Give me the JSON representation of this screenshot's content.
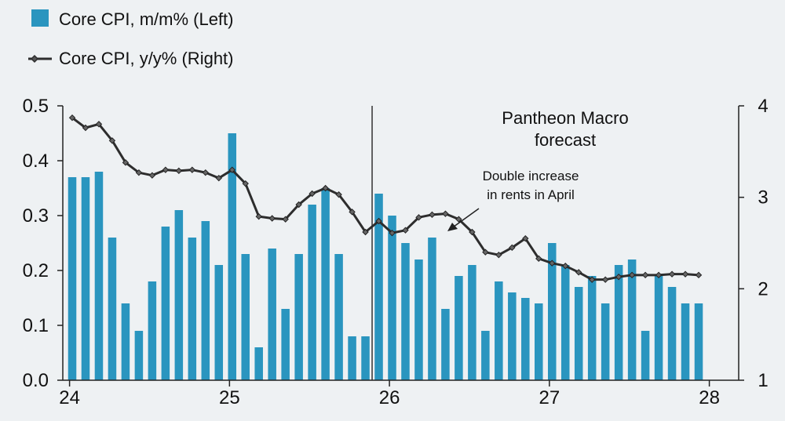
{
  "chart_data": {
    "type": "bar+line",
    "legend": [
      {
        "label": "Core CPI, m/m% (Left)",
        "marker": "bar",
        "color": "#2a95bf"
      },
      {
        "label": "Core CPI, y/y% (Right)",
        "marker": "line-diamond",
        "color": "#2d2d2d"
      }
    ],
    "x_ticks": [
      "24",
      "25",
      "26",
      "27",
      "28"
    ],
    "left_axis": {
      "ylim": [
        0,
        0.5
      ],
      "ticks": [
        "0.0",
        "0.1",
        "0.2",
        "0.3",
        "0.4",
        "0.5"
      ]
    },
    "right_axis": {
      "ylim": [
        1,
        4
      ],
      "ticks": [
        "1",
        "2",
        "3",
        "4"
      ]
    },
    "forecast_start": "Dec 2025",
    "annotations": {
      "forecast": [
        "Pantheon Macro",
        "forecast"
      ],
      "note": [
        "Double increase",
        "in rents in April"
      ]
    },
    "months": [
      "Jan 2024",
      "Feb 2024",
      "Mar 2024",
      "Apr 2024",
      "May 2024",
      "Jun 2024",
      "Jul 2024",
      "Aug 2024",
      "Sep 2024",
      "Oct 2024",
      "Nov 2024",
      "Dec 2024",
      "Jan 2025",
      "Feb 2025",
      "Mar 2025",
      "Apr 2025",
      "May 2025",
      "Jun 2025",
      "Jul 2025",
      "Aug 2025",
      "Sep 2025",
      "Oct 2025",
      "Nov 2025",
      "Dec 2025",
      "Jan 2026",
      "Feb 2026",
      "Mar 2026",
      "Apr 2026",
      "May 2026",
      "Jun 2026",
      "Jul 2026",
      "Aug 2026",
      "Sep 2026",
      "Oct 2026",
      "Nov 2026",
      "Dec 2026",
      "Jan 2027",
      "Feb 2027",
      "Mar 2027",
      "Apr 2027",
      "May 2027",
      "Jun 2027",
      "Jul 2027",
      "Aug 2027",
      "Sep 2027",
      "Oct 2027",
      "Nov 2027",
      "Dec 2027"
    ],
    "series": [
      {
        "name": "Core CPI, m/m% (Left)",
        "type": "bar",
        "axis": "left",
        "values": [
          0.37,
          0.37,
          0.38,
          0.26,
          0.14,
          0.09,
          0.18,
          0.28,
          0.31,
          0.26,
          0.29,
          0.21,
          0.45,
          0.23,
          0.06,
          0.24,
          0.13,
          0.23,
          0.32,
          0.35,
          0.23,
          0.08,
          0.08,
          0.34,
          0.3,
          0.25,
          0.22,
          0.26,
          0.13,
          0.19,
          0.21,
          0.09,
          0.18,
          0.16,
          0.15,
          0.14,
          0.25,
          0.21,
          0.17,
          0.19,
          0.14,
          0.21,
          0.22,
          0.09,
          0.19,
          0.17,
          0.14,
          0.14
        ]
      },
      {
        "name": "Core CPI, y/y% (Right)",
        "type": "line",
        "axis": "right",
        "values": [
          3.87,
          3.76,
          3.8,
          3.62,
          3.38,
          3.27,
          3.24,
          3.3,
          3.29,
          3.3,
          3.27,
          3.21,
          3.3,
          3.15,
          2.79,
          2.77,
          2.76,
          2.92,
          3.04,
          3.1,
          3.03,
          2.84,
          2.62,
          2.74,
          2.61,
          2.64,
          2.78,
          2.81,
          2.82,
          2.76,
          2.62,
          2.4,
          2.37,
          2.45,
          2.55,
          2.33,
          2.28,
          2.25,
          2.18,
          2.1,
          2.1,
          2.13,
          2.15,
          2.15,
          2.15,
          2.16,
          2.16,
          2.15
        ]
      }
    ]
  }
}
